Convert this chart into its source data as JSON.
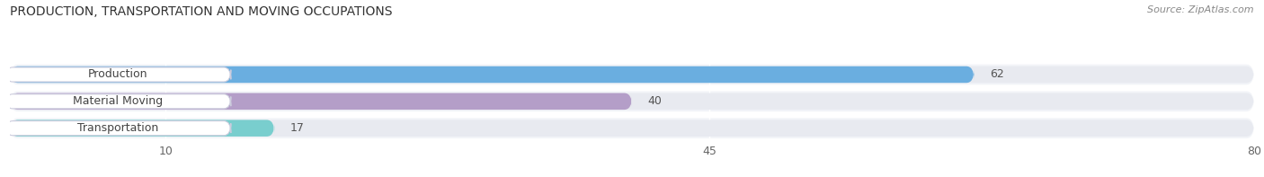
{
  "title": "PRODUCTION, TRANSPORTATION AND MOVING OCCUPATIONS",
  "source": "Source: ZipAtlas.com",
  "categories": [
    "Production",
    "Material Moving",
    "Transportation"
  ],
  "values": [
    62,
    40,
    17
  ],
  "bar_colors": [
    "#6aaee0",
    "#b49ec8",
    "#79cece"
  ],
  "bg_color": "#ffffff",
  "bar_bg_color": "#e8eaf0",
  "row_bg_color": "#f2f4f8",
  "label_bg_color": "#ffffff",
  "xlim_data": [
    0,
    80
  ],
  "xticks": [
    10,
    45,
    80
  ],
  "figsize": [
    14.06,
    1.97
  ],
  "dpi": 100,
  "title_fontsize": 10,
  "source_fontsize": 8,
  "label_fontsize": 9,
  "value_fontsize": 9
}
